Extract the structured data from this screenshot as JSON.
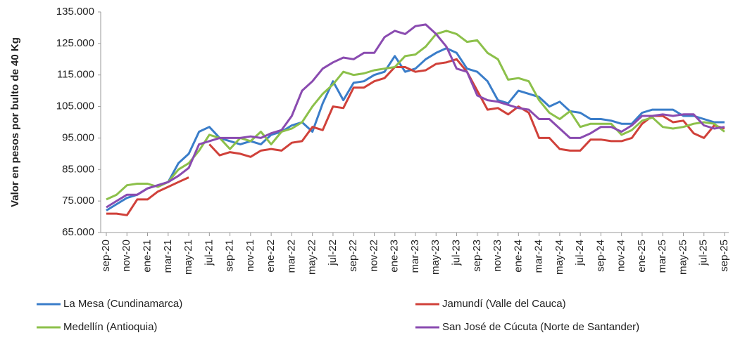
{
  "chart_data": {
    "type": "line",
    "y_label": "Valor en pesos por bulto de 40 Kg",
    "categories": [
      "sep-20",
      null,
      "nov-20",
      null,
      "ene-21",
      null,
      "mar-21",
      null,
      "may-21",
      null,
      "jul-21",
      null,
      "sep-21",
      null,
      "nov-21",
      null,
      "ene-22",
      null,
      "mar-22",
      null,
      "may-22",
      null,
      "jul-22",
      null,
      "sep-22",
      null,
      "nov-22",
      null,
      "ene-23",
      null,
      "mar-23",
      null,
      "may-23",
      null,
      "jul-23",
      null,
      "sep-23",
      null,
      "nov-23",
      null,
      "ene-24",
      null,
      "mar-24",
      null,
      "may-24",
      null,
      "jul-24",
      null,
      "sep-24",
      null,
      "nov-24",
      null,
      "ene-25",
      null,
      "mar-25",
      null,
      "may-25",
      null,
      "jul-25",
      null,
      "sep-25"
    ],
    "series": [
      {
        "name": "La Mesa (Cundinamarca)",
        "color": "#3a7dc9",
        "values": [
          72000,
          74000,
          76000,
          77000,
          79000,
          80000,
          81000,
          87000,
          90000,
          97000,
          98500,
          95000,
          94000,
          93000,
          94000,
          93000,
          96000,
          97000,
          99000,
          100000,
          97000,
          106000,
          113000,
          107000,
          112500,
          113000,
          115000,
          116000,
          121000,
          116000,
          117000,
          120000,
          122000,
          123500,
          122000,
          117000,
          116000,
          113000,
          107000,
          106000,
          110000,
          109000,
          108000,
          105000,
          106500,
          103500,
          103000,
          101000,
          101000,
          100500,
          99500,
          99500,
          103000,
          104000,
          104000,
          104000,
          102000,
          102000,
          101000,
          100000,
          100000
        ]
      },
      {
        "name": "Jamundí (Valle del Cauca)",
        "color": "#d0413a",
        "values": [
          71000,
          71000,
          70500,
          75500,
          75500,
          78000,
          79500,
          81000,
          82500,
          null,
          93000,
          89500,
          90500,
          90000,
          89000,
          91000,
          91500,
          91000,
          93500,
          94000,
          98500,
          97500,
          105000,
          104500,
          111000,
          111000,
          113000,
          114000,
          117500,
          117500,
          116000,
          116500,
          118500,
          119000,
          120000,
          116000,
          110000,
          104000,
          104500,
          102500,
          105000,
          103000,
          95000,
          95000,
          91500,
          91000,
          91000,
          94500,
          94500,
          94000,
          94000,
          95000,
          99500,
          102000,
          102000,
          100000,
          100500,
          96500,
          95000,
          99000,
          98000
        ]
      },
      {
        "name": "Medellín (Antioquia)",
        "color": "#8cc04a",
        "values": [
          75500,
          77000,
          80000,
          80500,
          80500,
          79500,
          81000,
          85000,
          87000,
          91000,
          96000,
          95000,
          91500,
          95000,
          94000,
          97000,
          93000,
          97000,
          98000,
          100000,
          105000,
          109000,
          112000,
          116000,
          115000,
          115500,
          116500,
          117000,
          117500,
          121000,
          121500,
          124000,
          128000,
          129000,
          128000,
          125500,
          126000,
          122000,
          120000,
          113500,
          114000,
          113000,
          107000,
          103000,
          101000,
          103500,
          98500,
          99500,
          99500,
          99500,
          96000,
          97500,
          100500,
          101500,
          98500,
          98000,
          98500,
          99500,
          100000,
          99500,
          97000
        ]
      },
      {
        "name": "San José de Cúcuta (Norte de Santander)",
        "color": "#8a4bb0",
        "values": [
          73000,
          75000,
          77000,
          77000,
          79000,
          80000,
          81000,
          83000,
          85500,
          93000,
          94000,
          95000,
          95000,
          95000,
          95500,
          95000,
          96500,
          97500,
          102000,
          110000,
          113000,
          117000,
          119000,
          120500,
          120000,
          122000,
          122000,
          127000,
          129000,
          128000,
          130500,
          131000,
          128000,
          124000,
          117000,
          116000,
          108500,
          107000,
          106500,
          105500,
          104500,
          104000,
          101000,
          101000,
          98000,
          95000,
          95000,
          96500,
          98500,
          98500,
          97000,
          99000,
          102000,
          102000,
          102500,
          102000,
          102500,
          102500,
          99000,
          98000,
          98500
        ]
      }
    ],
    "ylim": [
      65000,
      135000
    ],
    "yticks": [
      {
        "value": 65000,
        "label": "65.000"
      },
      {
        "value": 75000,
        "label": "75.000"
      },
      {
        "value": 85000,
        "label": "85.000"
      },
      {
        "value": 95000,
        "label": "95.000"
      },
      {
        "value": 105000,
        "label": "105.000"
      },
      {
        "value": 115000,
        "label": "115.000"
      },
      {
        "value": 125000,
        "label": "125.000"
      },
      {
        "value": 135000,
        "label": "135.000"
      }
    ],
    "grid": false
  }
}
